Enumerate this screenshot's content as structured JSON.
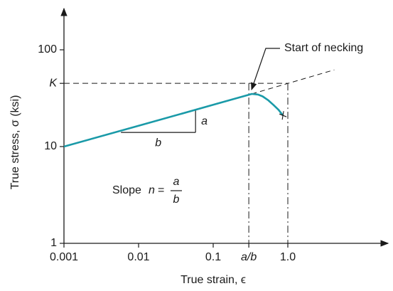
{
  "chart_data": {
    "type": "line",
    "x_label": "True strain, ϵ",
    "y_label": "True stress, σ (ksi)",
    "x": [
      0.001,
      0.01,
      0.1,
      0.33,
      0.4,
      0.46,
      0.55,
      0.64,
      0.75,
      0.86
    ],
    "values": [
      10,
      16.4,
      27,
      35,
      34.5,
      33,
      30,
      27,
      24,
      21
    ],
    "color": "#1a9aa8",
    "log_x": true,
    "log_y": true,
    "xlim": [
      0.001,
      10
    ],
    "ylim": [
      1,
      100
    ],
    "xticks": [
      0.001,
      0.01,
      0.1,
      {
        "value": 0.3,
        "label": "a/b"
      },
      {
        "value": 1,
        "label": "1.0"
      }
    ],
    "yticks": [
      1,
      10,
      {
        "value": 45,
        "label": "K"
      },
      100
    ],
    "extension": {
      "x": [
        0.33,
        4.2
      ],
      "values": [
        35,
        62
      ]
    },
    "slope_triangle": {
      "x": [
        0.0058,
        0.058
      ],
      "values": [
        14,
        23.7
      ],
      "rise_label": "a",
      "run_label": "b"
    },
    "annotations": {
      "necking": "Start of necking",
      "slope_word": "Slope",
      "slope_n": "n",
      "slope_eq": "=",
      "slope_num": "a",
      "slope_den": "b"
    }
  }
}
